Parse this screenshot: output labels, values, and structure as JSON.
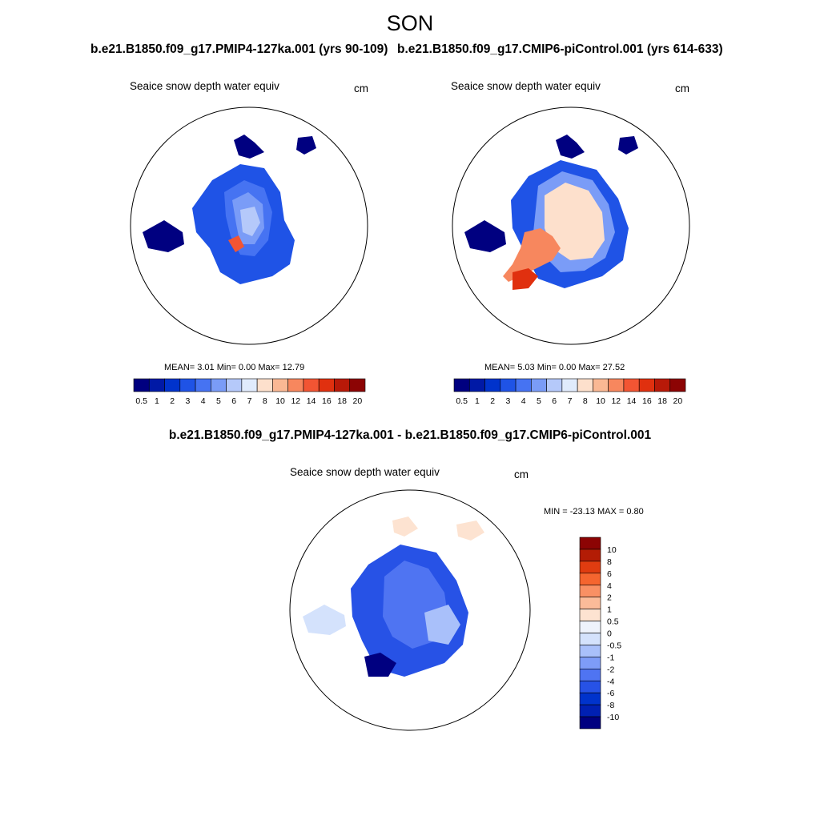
{
  "title": "SON",
  "colors": {
    "absolute_scale": [
      "#000080",
      "#0019a6",
      "#0033cc",
      "#1f53e6",
      "#4673f2",
      "#7a9cf7",
      "#b5c9fa",
      "#e0ebfc",
      "#fde0cc",
      "#fab894",
      "#f7875e",
      "#f25533",
      "#e0300f",
      "#b81908",
      "#8c0404"
    ],
    "difference_scale": [
      "#000080",
      "#0020b3",
      "#0033cc",
      "#2752e6",
      "#4f74f2",
      "#7e9cf7",
      "#a9c0fa",
      "#d4e2fc",
      "#eef3fc",
      "#fde3d1",
      "#fbbb99",
      "#f99064",
      "#f5652f",
      "#e03c10",
      "#b31c05",
      "#8c0404"
    ],
    "land_outline": "#000000",
    "background": "#ffffff"
  },
  "panels": [
    {
      "id": "pmip4",
      "case": "b.e21.B1850.f09_g17.PMIP4-127ka.001 (yrs 90-109)",
      "variable": "Seaice snow depth water equiv",
      "units": "cm",
      "stats": "MEAN=   3.01  Min=   0.00  Max=  12.79",
      "mean": 3.01,
      "min": 0.0,
      "max": 12.79
    },
    {
      "id": "picontrol",
      "case": "b.e21.B1850.f09_g17.CMIP6-piControl.001 (yrs 614-633)",
      "variable": "Seaice snow depth water equiv",
      "units": "cm",
      "stats": "MEAN=   5.03  Min=   0.00  Max=  27.52",
      "mean": 5.03,
      "min": 0.0,
      "max": 27.52
    }
  ],
  "absolute_colorbar_labels": [
    "0.5",
    "1",
    "2",
    "3",
    "4",
    "5",
    "6",
    "7",
    "8",
    "10",
    "12",
    "14",
    "16",
    "18",
    "20"
  ],
  "difference": {
    "title": "b.e21.B1850.f09_g17.PMIP4-127ka.001 - b.e21.B1850.f09_g17.CMIP6-piControl.001",
    "variable": "Seaice snow depth water equiv",
    "units": "cm",
    "stats": "MIN = -23.13 MAX =   0.80",
    "min": -23.13,
    "max": 0.8,
    "colorbar_labels": [
      "10",
      "8",
      "6",
      "4",
      "2",
      "1",
      "0.5",
      "0",
      "-0.5",
      "-1",
      "-2",
      "-4",
      "-6",
      "-8",
      "-10"
    ]
  }
}
